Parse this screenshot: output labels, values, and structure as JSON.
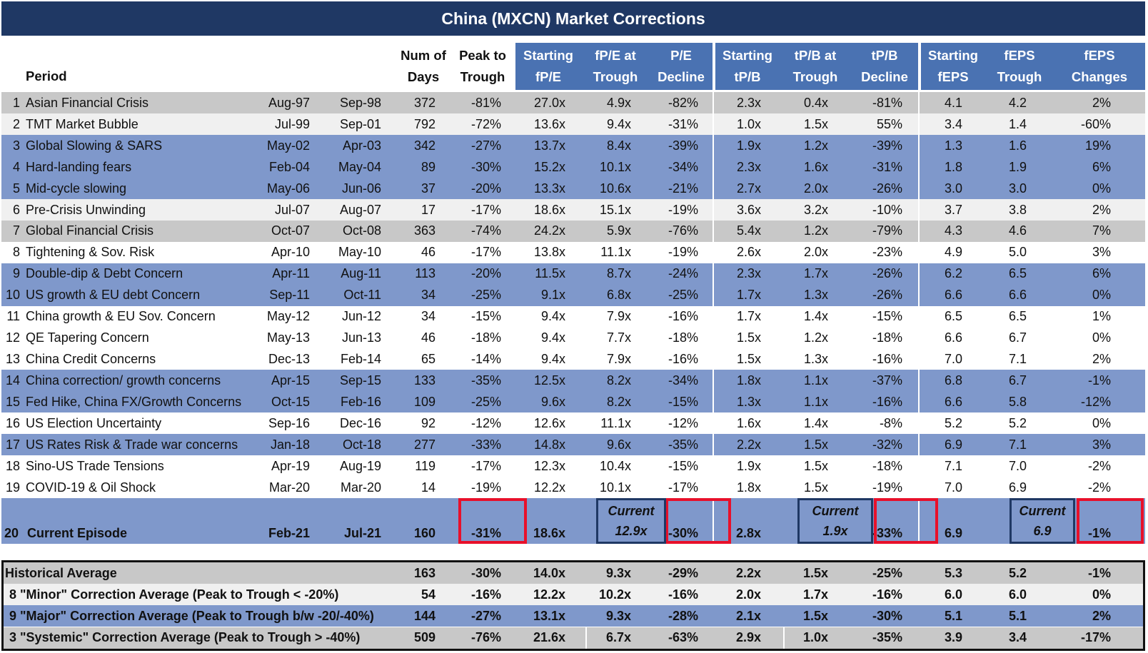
{
  "title": "China (MXCN) Market Corrections",
  "colors": {
    "navy": "#1f3864",
    "header_blue": "#4a72b2",
    "row_blue": "#7f98cb",
    "row_gray": "#c8c8c8",
    "highlight_red": "#e8102a"
  },
  "headers": {
    "period": "Period",
    "num_days_1": "Num of",
    "num_days_2": "Days",
    "peak_1": "Peak to",
    "peak_2": "Trough",
    "start_fpe_1": "Starting",
    "start_fpe_2": "fP/E",
    "fpe_trough_1": "fP/E at",
    "fpe_trough_2": "Trough",
    "pe_decline_1": "P/E",
    "pe_decline_2": "Decline",
    "start_tpb_1": "Starting",
    "start_tpb_2": "tP/B",
    "tpb_trough_1": "tP/B at",
    "tpb_trough_2": "Trough",
    "tpb_decline_1": "tP/B",
    "tpb_decline_2": "Decline",
    "start_feps_1": "Starting",
    "start_feps_2": "fEPS",
    "feps_trough_1": "fEPS",
    "feps_trough_2": "Trough",
    "feps_changes_1": "fEPS",
    "feps_changes_2": "Changes"
  },
  "rows": [
    {
      "n": "1",
      "name": "Asian Financial Crisis",
      "start": "Aug-97",
      "end": "Sep-98",
      "days": "372",
      "peak": "-81%",
      "sfpe": "27.0x",
      "fpet": "4.9x",
      "ped": "-82%",
      "stpb": "2.3x",
      "tpbt": "0.4x",
      "tpbd": "-81%",
      "sfeps": "4.1",
      "fepst": "4.2",
      "fepsc": "2%"
    },
    {
      "n": "2",
      "name": "TMT Market Bubble",
      "start": "Jul-99",
      "end": "Sep-01",
      "days": "792",
      "peak": "-72%",
      "sfpe": "13.6x",
      "fpet": "9.4x",
      "ped": "-31%",
      "stpb": "1.0x",
      "tpbt": "1.5x",
      "tpbd": "55%",
      "sfeps": "3.4",
      "fepst": "1.4",
      "fepsc": "-60%"
    },
    {
      "n": "3",
      "name": "Global Slowing & SARS",
      "start": "May-02",
      "end": "Apr-03",
      "days": "342",
      "peak": "-27%",
      "sfpe": "13.7x",
      "fpet": "8.4x",
      "ped": "-39%",
      "stpb": "1.9x",
      "tpbt": "1.2x",
      "tpbd": "-39%",
      "sfeps": "1.3",
      "fepst": "1.6",
      "fepsc": "19%"
    },
    {
      "n": "4",
      "name": "Hard-landing fears",
      "start": "Feb-04",
      "end": "May-04",
      "days": "89",
      "peak": "-30%",
      "sfpe": "15.2x",
      "fpet": "10.1x",
      "ped": "-34%",
      "stpb": "2.3x",
      "tpbt": "1.6x",
      "tpbd": "-31%",
      "sfeps": "1.8",
      "fepst": "1.9",
      "fepsc": "6%"
    },
    {
      "n": "5",
      "name": "Mid-cycle slowing",
      "start": "May-06",
      "end": "Jun-06",
      "days": "37",
      "peak": "-20%",
      "sfpe": "13.3x",
      "fpet": "10.6x",
      "ped": "-21%",
      "stpb": "2.7x",
      "tpbt": "2.0x",
      "tpbd": "-26%",
      "sfeps": "3.0",
      "fepst": "3.0",
      "fepsc": "0%"
    },
    {
      "n": "6",
      "name": "Pre-Crisis Unwinding",
      "start": "Jul-07",
      "end": "Aug-07",
      "days": "17",
      "peak": "-17%",
      "sfpe": "18.6x",
      "fpet": "15.1x",
      "ped": "-19%",
      "stpb": "3.6x",
      "tpbt": "3.2x",
      "tpbd": "-10%",
      "sfeps": "3.7",
      "fepst": "3.8",
      "fepsc": "2%"
    },
    {
      "n": "7",
      "name": "Global Financial Crisis",
      "start": "Oct-07",
      "end": "Oct-08",
      "days": "363",
      "peak": "-74%",
      "sfpe": "24.2x",
      "fpet": "5.9x",
      "ped": "-76%",
      "stpb": "5.4x",
      "tpbt": "1.2x",
      "tpbd": "-79%",
      "sfeps": "4.3",
      "fepst": "4.6",
      "fepsc": "7%"
    },
    {
      "n": "8",
      "name": "Tightening & Sov. Risk",
      "start": "Apr-10",
      "end": "May-10",
      "days": "46",
      "peak": "-17%",
      "sfpe": "13.8x",
      "fpet": "11.1x",
      "ped": "-19%",
      "stpb": "2.6x",
      "tpbt": "2.0x",
      "tpbd": "-23%",
      "sfeps": "4.9",
      "fepst": "5.0",
      "fepsc": "3%"
    },
    {
      "n": "9",
      "name": "Double-dip & Debt Concern",
      "start": "Apr-11",
      "end": "Aug-11",
      "days": "113",
      "peak": "-20%",
      "sfpe": "11.5x",
      "fpet": "8.7x",
      "ped": "-24%",
      "stpb": "2.3x",
      "tpbt": "1.7x",
      "tpbd": "-26%",
      "sfeps": "6.2",
      "fepst": "6.5",
      "fepsc": "6%"
    },
    {
      "n": "10",
      "name": "US growth & EU debt Concern",
      "start": "Sep-11",
      "end": "Oct-11",
      "days": "34",
      "peak": "-25%",
      "sfpe": "9.1x",
      "fpet": "6.8x",
      "ped": "-25%",
      "stpb": "1.7x",
      "tpbt": "1.3x",
      "tpbd": "-26%",
      "sfeps": "6.6",
      "fepst": "6.6",
      "fepsc": "0%"
    },
    {
      "n": "11",
      "name": "China growth & EU Sov. Concern",
      "start": "May-12",
      "end": "Jun-12",
      "days": "34",
      "peak": "-15%",
      "sfpe": "9.4x",
      "fpet": "7.9x",
      "ped": "-16%",
      "stpb": "1.7x",
      "tpbt": "1.4x",
      "tpbd": "-15%",
      "sfeps": "6.5",
      "fepst": "6.5",
      "fepsc": "1%"
    },
    {
      "n": "12",
      "name": "QE Tapering Concern",
      "start": "May-13",
      "end": "Jun-13",
      "days": "46",
      "peak": "-18%",
      "sfpe": "9.4x",
      "fpet": "7.7x",
      "ped": "-18%",
      "stpb": "1.5x",
      "tpbt": "1.2x",
      "tpbd": "-18%",
      "sfeps": "6.6",
      "fepst": "6.7",
      "fepsc": "0%"
    },
    {
      "n": "13",
      "name": "China Credit Concerns",
      "start": "Dec-13",
      "end": "Feb-14",
      "days": "65",
      "peak": "-14%",
      "sfpe": "9.4x",
      "fpet": "7.9x",
      "ped": "-16%",
      "stpb": "1.5x",
      "tpbt": "1.3x",
      "tpbd": "-16%",
      "sfeps": "7.0",
      "fepst": "7.1",
      "fepsc": "2%"
    },
    {
      "n": "14",
      "name": "China correction/ growth concerns",
      "start": "Apr-15",
      "end": "Sep-15",
      "days": "133",
      "peak": "-35%",
      "sfpe": "12.5x",
      "fpet": "8.2x",
      "ped": "-34%",
      "stpb": "1.8x",
      "tpbt": "1.1x",
      "tpbd": "-37%",
      "sfeps": "6.8",
      "fepst": "6.7",
      "fepsc": "-1%"
    },
    {
      "n": "15",
      "name": "Fed Hike, China FX/Growth Concerns",
      "start": "Oct-15",
      "end": "Feb-16",
      "days": "109",
      "peak": "-25%",
      "sfpe": "9.6x",
      "fpet": "8.2x",
      "ped": "-15%",
      "stpb": "1.3x",
      "tpbt": "1.1x",
      "tpbd": "-16%",
      "sfeps": "6.6",
      "fepst": "5.8",
      "fepsc": "-12%"
    },
    {
      "n": "16",
      "name": "US Election Uncertainty",
      "start": "Sep-16",
      "end": "Dec-16",
      "days": "92",
      "peak": "-12%",
      "sfpe": "12.6x",
      "fpet": "11.1x",
      "ped": "-12%",
      "stpb": "1.6x",
      "tpbt": "1.4x",
      "tpbd": "-8%",
      "sfeps": "5.2",
      "fepst": "5.2",
      "fepsc": "0%"
    },
    {
      "n": "17",
      "name": "US Rates Risk & Trade war concerns",
      "start": "Jan-18",
      "end": "Oct-18",
      "days": "277",
      "peak": "-33%",
      "sfpe": "14.8x",
      "fpet": "9.6x",
      "ped": "-35%",
      "stpb": "2.2x",
      "tpbt": "1.5x",
      "tpbd": "-32%",
      "sfeps": "6.9",
      "fepst": "7.1",
      "fepsc": "3%"
    },
    {
      "n": "18",
      "name": "Sino-US Trade Tensions",
      "start": "Apr-19",
      "end": "Aug-19",
      "days": "119",
      "peak": "-17%",
      "sfpe": "12.3x",
      "fpet": "10.4x",
      "ped": "-15%",
      "stpb": "1.9x",
      "tpbt": "1.5x",
      "tpbd": "-18%",
      "sfeps": "7.1",
      "fepst": "7.0",
      "fepsc": "-2%"
    },
    {
      "n": "19",
      "name": "COVID-19 & Oil Shock",
      "start": "Mar-20",
      "end": "Mar-20",
      "days": "14",
      "peak": "-19%",
      "sfpe": "12.2x",
      "fpet": "10.1x",
      "ped": "-17%",
      "stpb": "1.8x",
      "tpbt": "1.5x",
      "tpbd": "-19%",
      "sfeps": "7.0",
      "fepst": "6.9",
      "fepsc": "-2%"
    }
  ],
  "current": {
    "n": "20",
    "name": "Current Episode",
    "start": "Feb-21",
    "end": "Jul-21",
    "days": "160",
    "peak": "-31%",
    "sfpe": "18.6x",
    "fpet_label": "Current",
    "fpet": "12.9x",
    "ped": "-30%",
    "stpb": "2.8x",
    "tpbt_label": "Current",
    "tpbt": "1.9x",
    "tpbd": "-33%",
    "sfeps": "6.9",
    "fepst_label": "Current",
    "fepst": "6.9",
    "fepsc": "-1%"
  },
  "summary": [
    {
      "label": "Historical Average",
      "days": "163",
      "peak": "-30%",
      "sfpe": "14.0x",
      "fpet": "9.3x",
      "ped": "-29%",
      "stpb": "2.2x",
      "tpbt": "1.5x",
      "tpbd": "-25%",
      "sfeps": "5.3",
      "fepst": "5.2",
      "fepsc": "-1%"
    },
    {
      "label": "8 \"Minor\" Correction Average (Peak to Trough < -20%)",
      "days": "54",
      "peak": "-16%",
      "sfpe": "12.2x",
      "fpet": "10.2x",
      "ped": "-16%",
      "stpb": "2.0x",
      "tpbt": "1.7x",
      "tpbd": "-16%",
      "sfeps": "6.0",
      "fepst": "6.0",
      "fepsc": "0%"
    },
    {
      "label": "9 \"Major\" Correction Average (Peak to Trough b/w -20/-40%)",
      "days": "144",
      "peak": "-27%",
      "sfpe": "13.1x",
      "fpet": "9.3x",
      "ped": "-28%",
      "stpb": "2.1x",
      "tpbt": "1.5x",
      "tpbd": "-30%",
      "sfeps": "5.1",
      "fepst": "5.1",
      "fepsc": "2%"
    },
    {
      "label": "3 \"Systemic\" Correction Average (Peak to Trough > -40%)",
      "days": "509",
      "peak": "-76%",
      "sfpe": "21.6x",
      "fpet": "6.7x",
      "ped": "-63%",
      "stpb": "2.9x",
      "tpbt": "1.0x",
      "tpbd": "-35%",
      "sfeps": "3.9",
      "fepst": "3.4",
      "fepsc": "-17%"
    }
  ]
}
